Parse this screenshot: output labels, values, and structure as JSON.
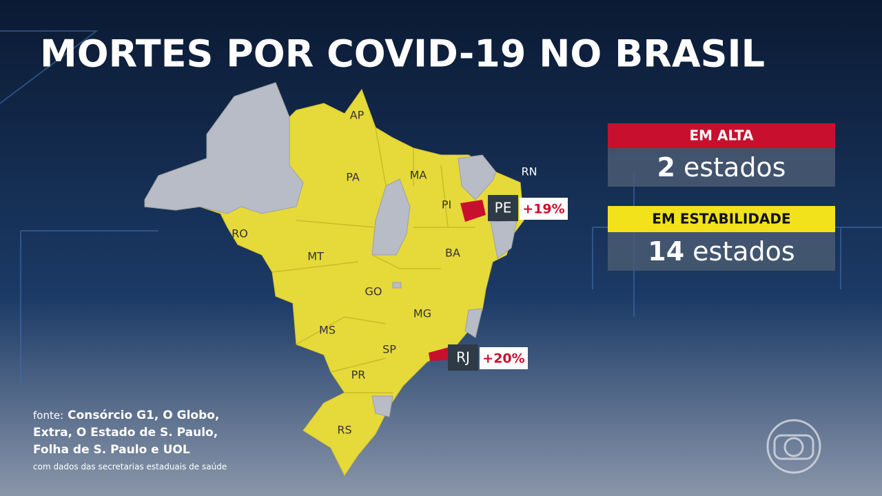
{
  "header": {
    "title": "MORTES POR COVID-19 NO BRASIL"
  },
  "map": {
    "state_labels": [
      "AP",
      "PA",
      "MA",
      "PI",
      "RN",
      "RO",
      "MT",
      "BA",
      "GO",
      "MG",
      "MS",
      "SP",
      "PR",
      "RS"
    ],
    "highlights": [
      {
        "state": "PE",
        "change": "+19%"
      },
      {
        "state": "RJ",
        "change": "+20%"
      }
    ]
  },
  "legend": [
    {
      "label": "EM ALTA",
      "count": "2",
      "unit": "estados"
    },
    {
      "label": "EM ESTABILIDADE",
      "count": "14",
      "unit": "estados"
    }
  ],
  "source": {
    "prefix": "fonte:",
    "lines": [
      "Consórcio G1, O Globo,",
      "Extra, O Estado de S. Paulo,",
      "Folha de S. Paulo e UOL"
    ],
    "note": "com dados das secretarias estaduais de saúde"
  }
}
